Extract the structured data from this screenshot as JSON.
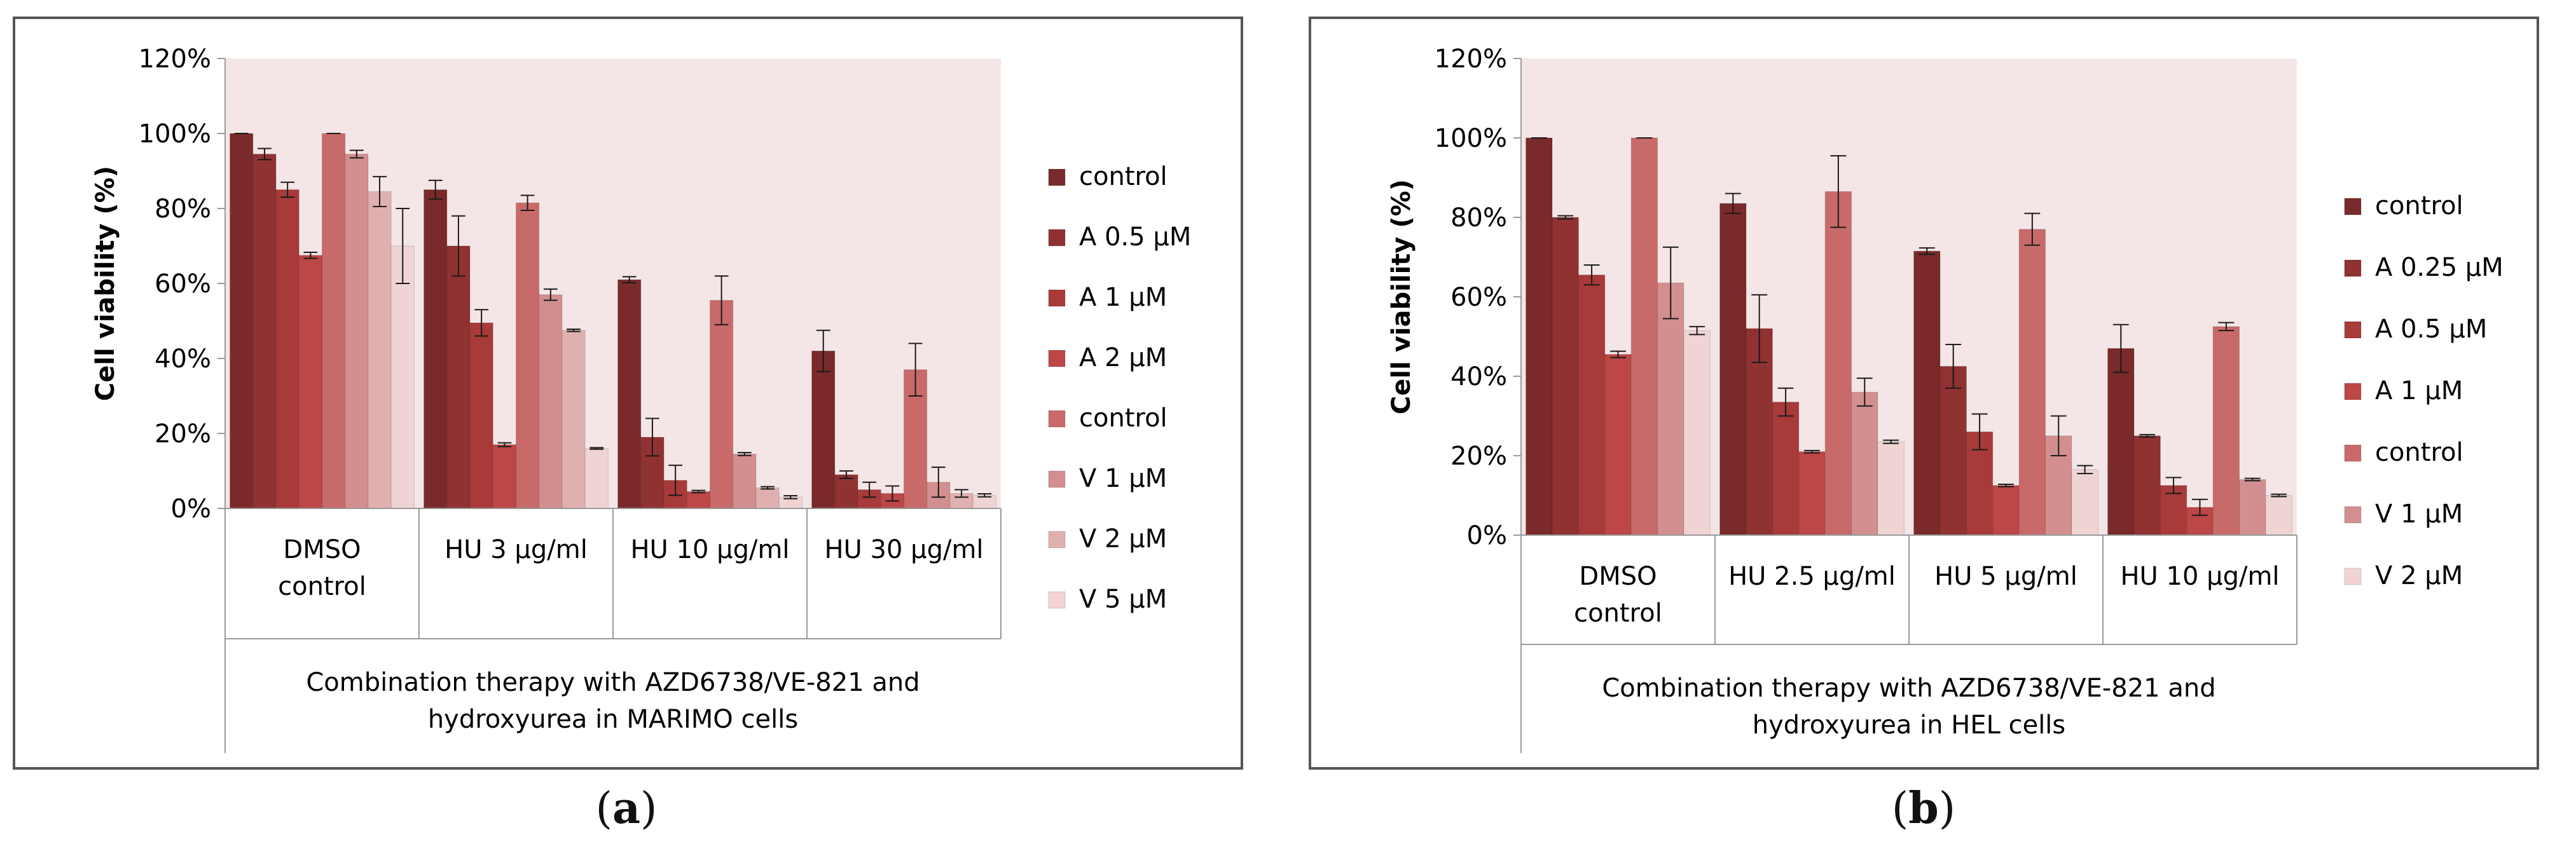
{
  "captions": {
    "a": "a",
    "b": "b"
  },
  "chart_data": [
    {
      "type": "bar",
      "panel": "a",
      "ylabel": "Cell viability (%)",
      "xlabel_lines": [
        "Combination therapy with AZD6738/VE-821 and",
        "hydroxyurea in MARIMO cells"
      ],
      "ylim": [
        0,
        120
      ],
      "yticks": [
        0,
        20,
        40,
        60,
        80,
        100,
        120
      ],
      "ytick_labels": [
        "0%",
        "20%",
        "40%",
        "60%",
        "80%",
        "100%",
        "120%"
      ],
      "grid": false,
      "legend_position": "right",
      "categories": [
        [
          "DMSO",
          "control"
        ],
        [
          "HU 3 µg/ml"
        ],
        [
          "HU 10 µg/ml"
        ],
        [
          "HU 30 µg/ml"
        ]
      ],
      "series": [
        {
          "name": "control",
          "color": "#7a2a2a",
          "values": [
            100,
            85,
            61,
            42
          ],
          "errors": [
            0,
            2.5,
            0.8,
            5.5
          ]
        },
        {
          "name": "A 0.5 µM",
          "color": "#903232",
          "values": [
            94.5,
            70,
            19,
            9
          ],
          "errors": [
            1.5,
            8,
            5,
            1
          ]
        },
        {
          "name": "A 1 µM",
          "color": "#a83a3a",
          "values": [
            85,
            49.5,
            7.5,
            5
          ],
          "errors": [
            2,
            3.5,
            4,
            2
          ]
        },
        {
          "name": "A 2 µM",
          "color": "#bd4646",
          "values": [
            67.5,
            17,
            4.5,
            4
          ],
          "errors": [
            0.8,
            0.5,
            0.3,
            2
          ]
        },
        {
          "name": "control",
          "color": "#c86a6a",
          "values": [
            100,
            81.5,
            55.5,
            37
          ],
          "errors": [
            0,
            2,
            6.5,
            7
          ]
        },
        {
          "name": "V 1 µM",
          "color": "#d38f8f",
          "values": [
            94.5,
            57,
            14.5,
            7
          ],
          "errors": [
            1,
            1.5,
            0.4,
            4
          ]
        },
        {
          "name": "V 2 µM",
          "color": "#e0b0b0",
          "values": [
            84.5,
            47.5,
            5.5,
            4
          ],
          "errors": [
            4,
            0.3,
            0.3,
            1
          ]
        },
        {
          "name": "V 5 µM",
          "color": "#f0d4d4",
          "values": [
            70,
            16,
            3,
            3.5
          ],
          "errors": [
            10,
            0.2,
            0.4,
            0.4
          ]
        }
      ]
    },
    {
      "type": "bar",
      "panel": "b",
      "ylabel": "Cell  viability (%)",
      "xlabel_lines": [
        "Combination therapy with AZD6738/VE-821 and",
        "hydroxyurea in HEL cells"
      ],
      "ylim": [
        0,
        120
      ],
      "yticks": [
        0,
        20,
        40,
        60,
        80,
        100,
        120
      ],
      "ytick_labels": [
        "0%",
        "20%",
        "40%",
        "60%",
        "80%",
        "100%",
        "120%"
      ],
      "grid": false,
      "legend_position": "right",
      "categories": [
        [
          "DMSO",
          "control"
        ],
        [
          "HU 2.5 µg/ml"
        ],
        [
          "HU 5 µg/ml"
        ],
        [
          "HU 10 µg/ml"
        ]
      ],
      "series": [
        {
          "name": "control",
          "color": "#7a2a2a",
          "values": [
            100,
            83.5,
            71.5,
            47
          ],
          "errors": [
            0,
            2.5,
            0.8,
            6
          ]
        },
        {
          "name": "A 0.25 µM",
          "color": "#903232",
          "values": [
            80,
            52,
            42.5,
            25
          ],
          "errors": [
            0.4,
            8.5,
            5.5,
            0.3
          ]
        },
        {
          "name": "A 0.5 µM",
          "color": "#a83a3a",
          "values": [
            65.5,
            33.5,
            26,
            12.5
          ],
          "errors": [
            2.5,
            3.5,
            4.5,
            2
          ]
        },
        {
          "name": "A 1 µM",
          "color": "#bd4646",
          "values": [
            45.5,
            21,
            12.5,
            7
          ],
          "errors": [
            0.8,
            0.3,
            0.3,
            2
          ]
        },
        {
          "name": "control",
          "color": "#c86a6a",
          "values": [
            100,
            86.5,
            77,
            52.5
          ],
          "errors": [
            0,
            9,
            4,
            1
          ]
        },
        {
          "name": "V 1 µM",
          "color": "#d38f8f",
          "values": [
            63.5,
            36,
            25,
            14
          ],
          "errors": [
            9,
            3.5,
            5,
            0.3
          ]
        },
        {
          "name": "V 2 µM",
          "color": "#f0d4d4",
          "values": [
            51.5,
            23.5,
            16.5,
            10
          ],
          "errors": [
            1,
            0.4,
            1,
            0.3
          ]
        }
      ]
    }
  ]
}
